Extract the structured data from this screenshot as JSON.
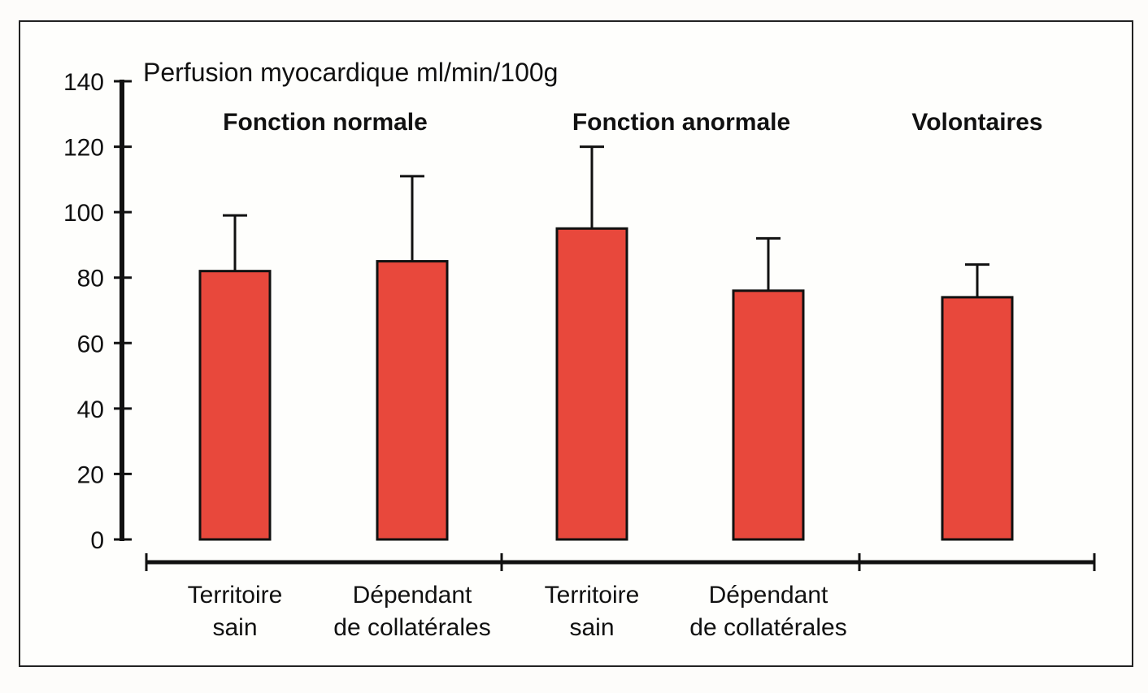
{
  "chart_data": {
    "type": "bar",
    "ylabel": "Perfusion myocardique ml/min/100g",
    "ylim": [
      0,
      140
    ],
    "yticks": [
      "0",
      "20",
      "40",
      "60",
      "80",
      "100",
      "120",
      "140"
    ],
    "grid": false,
    "groups": [
      {
        "label": "Fonction normale",
        "categories": [
          0,
          1
        ]
      },
      {
        "label": "Fonction anormale",
        "categories": [
          2,
          3
        ]
      },
      {
        "label": "Volontaires",
        "categories": [
          4
        ]
      }
    ],
    "categories": [
      [
        "Territoire",
        "sain"
      ],
      [
        "Dépendant",
        "de collatérales"
      ],
      [
        "Territoire",
        "sain"
      ],
      [
        "Dépendant",
        "de collatérales"
      ],
      [
        "",
        ""
      ]
    ],
    "values": [
      82,
      85,
      95,
      76,
      74
    ],
    "error_upper": [
      99,
      111,
      120,
      92,
      84
    ],
    "bar_color": "#e8483c",
    "outline_color": "#111111"
  }
}
